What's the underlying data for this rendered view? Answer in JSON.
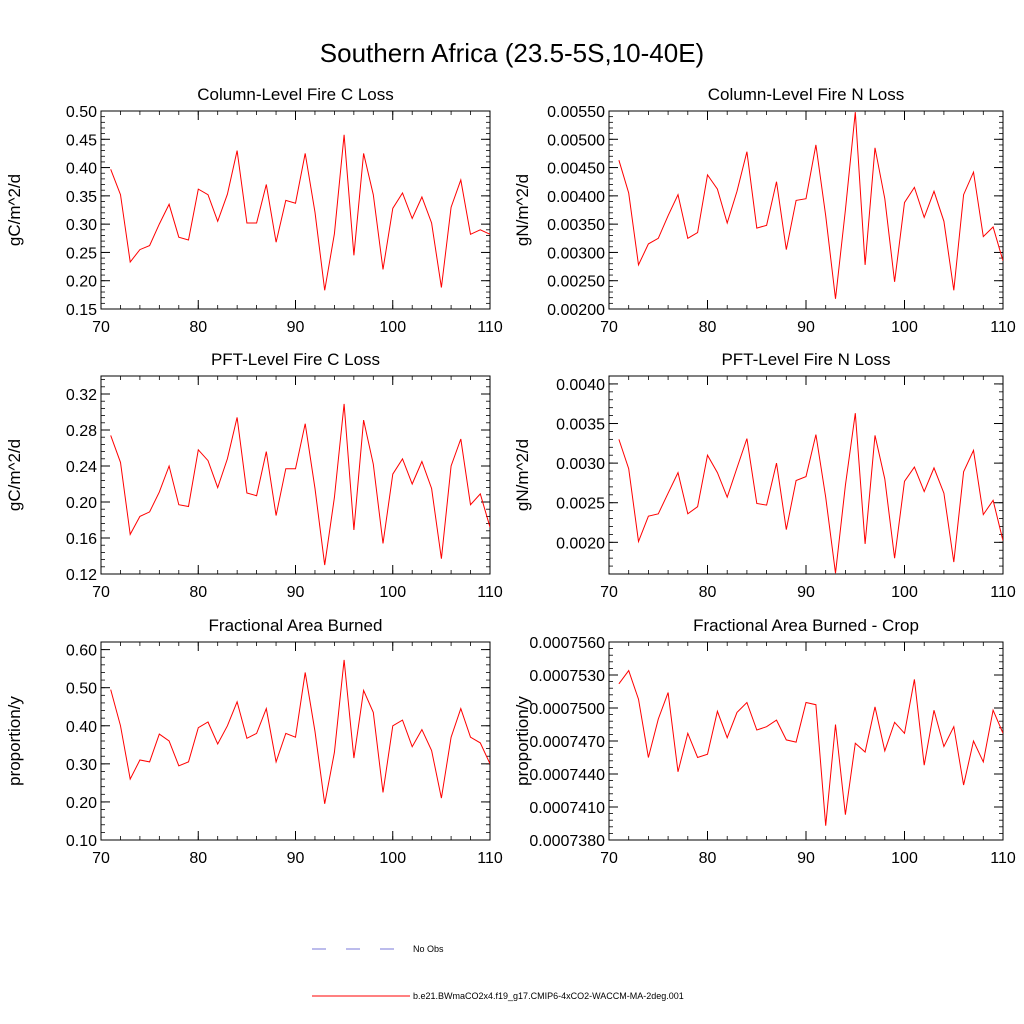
{
  "figure": {
    "title": "Southern Africa (23.5-5S,10-40E)"
  },
  "legend": {
    "entries": [
      {
        "label": "No Obs",
        "color": "#7a7ad8",
        "style": "dashed"
      },
      {
        "label": "b.e21.BWmaCO2x4.f19_g17.CMIP6-4xCO2-WACCM-MA-2deg.001",
        "color": "#ff0000",
        "style": "solid"
      }
    ]
  },
  "chart_data": [
    {
      "type": "line",
      "title": "Column-Level Fire C Loss",
      "xlabel": "",
      "ylabel": "gC/m^2/d",
      "xlim": [
        70,
        110
      ],
      "ylim": [
        0.15,
        0.5
      ],
      "xticks": [
        70,
        80,
        90,
        100,
        110
      ],
      "xtick_labels": [
        "70",
        "80",
        "90",
        "100",
        "110"
      ],
      "yticks": [
        0.15,
        0.2,
        0.25,
        0.3,
        0.35,
        0.4,
        0.45,
        0.5
      ],
      "ytick_labels": [
        "0.15",
        "0.20",
        "0.25",
        "0.30",
        "0.35",
        "0.40",
        "0.45",
        "0.50"
      ],
      "series": [
        {
          "name": "b.e21.BWmaCO2x4.f19_g17.CMIP6-4xCO2-WACCM-MA-2deg.001",
          "color": "#ff0000",
          "x": [
            71,
            72,
            73,
            74,
            75,
            76,
            77,
            78,
            79,
            80,
            81,
            82,
            83,
            84,
            85,
            86,
            87,
            88,
            89,
            90,
            91,
            92,
            93,
            94,
            95,
            96,
            97,
            98,
            99,
            100,
            101,
            102,
            103,
            104,
            105,
            106,
            107,
            108,
            109,
            110
          ],
          "y": [
            0.397,
            0.352,
            0.233,
            0.255,
            0.262,
            0.3,
            0.335,
            0.277,
            0.272,
            0.362,
            0.352,
            0.305,
            0.353,
            0.43,
            0.302,
            0.302,
            0.37,
            0.268,
            0.342,
            0.337,
            0.425,
            0.321,
            0.183,
            0.283,
            0.458,
            0.245,
            0.425,
            0.352,
            0.22,
            0.328,
            0.355,
            0.31,
            0.348,
            0.302,
            0.188,
            0.33,
            0.378,
            0.282,
            0.29,
            0.282
          ]
        }
      ]
    },
    {
      "type": "line",
      "title": "Column-Level Fire N Loss",
      "xlabel": "",
      "ylabel": "gN/m^2/d",
      "xlim": [
        70,
        110
      ],
      "ylim": [
        0.002,
        0.0055
      ],
      "xticks": [
        70,
        80,
        90,
        100,
        110
      ],
      "xtick_labels": [
        "70",
        "80",
        "90",
        "100",
        "110"
      ],
      "yticks": [
        0.002,
        0.0025,
        0.003,
        0.0035,
        0.004,
        0.0045,
        0.005,
        0.0055
      ],
      "ytick_labels": [
        "0.00200",
        "0.00250",
        "0.00300",
        "0.00350",
        "0.00400",
        "0.00450",
        "0.00500",
        "0.00550"
      ],
      "series": [
        {
          "name": "b.e21.BWmaCO2x4.f19_g17.CMIP6-4xCO2-WACCM-MA-2deg.001",
          "color": "#ff0000",
          "x": [
            71,
            72,
            73,
            74,
            75,
            76,
            77,
            78,
            79,
            80,
            81,
            82,
            83,
            84,
            85,
            86,
            87,
            88,
            89,
            90,
            91,
            92,
            93,
            94,
            95,
            96,
            97,
            98,
            99,
            100,
            101,
            102,
            103,
            104,
            105,
            106,
            107,
            108,
            109,
            110
          ],
          "y": [
            0.00463,
            0.00405,
            0.00278,
            0.00315,
            0.00325,
            0.00365,
            0.00402,
            0.00325,
            0.00335,
            0.00437,
            0.00412,
            0.00352,
            0.00408,
            0.00478,
            0.00343,
            0.00348,
            0.00425,
            0.00305,
            0.00392,
            0.00395,
            0.0049,
            0.00365,
            0.00218,
            0.00375,
            0.00548,
            0.00278,
            0.00485,
            0.00395,
            0.00248,
            0.00388,
            0.00415,
            0.00362,
            0.00408,
            0.00355,
            0.00233,
            0.00402,
            0.00442,
            0.00328,
            0.00345,
            0.00285
          ]
        }
      ]
    },
    {
      "type": "line",
      "title": "PFT-Level Fire C Loss",
      "xlabel": "",
      "ylabel": "gC/m^2/d",
      "xlim": [
        70,
        110
      ],
      "ylim": [
        0.12,
        0.34
      ],
      "xticks": [
        70,
        80,
        90,
        100,
        110
      ],
      "xtick_labels": [
        "70",
        "80",
        "90",
        "100",
        "110"
      ],
      "yticks": [
        0.12,
        0.16,
        0.2,
        0.24,
        0.28,
        0.32
      ],
      "ytick_labels": [
        "0.12",
        "0.16",
        "0.20",
        "0.24",
        "0.28",
        "0.32"
      ],
      "series": [
        {
          "name": "b.e21.BWmaCO2x4.f19_g17.CMIP6-4xCO2-WACCM-MA-2deg.001",
          "color": "#ff0000",
          "x": [
            71,
            72,
            73,
            74,
            75,
            76,
            77,
            78,
            79,
            80,
            81,
            82,
            83,
            84,
            85,
            86,
            87,
            88,
            89,
            90,
            91,
            92,
            93,
            94,
            95,
            96,
            97,
            98,
            99,
            100,
            101,
            102,
            103,
            104,
            105,
            106,
            107,
            108,
            109,
            110
          ],
          "y": [
            0.274,
            0.244,
            0.164,
            0.184,
            0.189,
            0.211,
            0.24,
            0.197,
            0.195,
            0.258,
            0.246,
            0.216,
            0.248,
            0.294,
            0.21,
            0.207,
            0.256,
            0.185,
            0.237,
            0.237,
            0.287,
            0.215,
            0.13,
            0.205,
            0.309,
            0.169,
            0.291,
            0.242,
            0.154,
            0.231,
            0.248,
            0.22,
            0.245,
            0.215,
            0.137,
            0.24,
            0.27,
            0.197,
            0.209,
            0.172
          ]
        }
      ]
    },
    {
      "type": "line",
      "title": "PFT-Level Fire N Loss",
      "xlabel": "",
      "ylabel": "gN/m^2/d",
      "xlim": [
        70,
        110
      ],
      "ylim": [
        0.0016,
        0.0041
      ],
      "xticks": [
        70,
        80,
        90,
        100,
        110
      ],
      "xtick_labels": [
        "70",
        "80",
        "90",
        "100",
        "110"
      ],
      "yticks": [
        0.002,
        0.0025,
        0.003,
        0.0035,
        0.004
      ],
      "ytick_labels": [
        "0.0020",
        "0.0025",
        "0.0030",
        "0.0035",
        "0.0040"
      ],
      "series": [
        {
          "name": "b.e21.BWmaCO2x4.f19_g17.CMIP6-4xCO2-WACCM-MA-2deg.001",
          "color": "#ff0000",
          "x": [
            71,
            72,
            73,
            74,
            75,
            76,
            77,
            78,
            79,
            80,
            81,
            82,
            83,
            84,
            85,
            86,
            87,
            88,
            89,
            90,
            91,
            92,
            93,
            94,
            95,
            96,
            97,
            98,
            99,
            100,
            101,
            102,
            103,
            104,
            105,
            106,
            107,
            108,
            109,
            110
          ],
          "y": [
            0.0033,
            0.00293,
            0.00201,
            0.00233,
            0.00236,
            0.00262,
            0.00288,
            0.00236,
            0.00245,
            0.0031,
            0.00288,
            0.00257,
            0.00294,
            0.00331,
            0.00249,
            0.00247,
            0.003,
            0.00216,
            0.00278,
            0.00283,
            0.00336,
            0.00257,
            0.00161,
            0.00272,
            0.00363,
            0.00198,
            0.00335,
            0.0028,
            0.0018,
            0.00277,
            0.00295,
            0.00264,
            0.00294,
            0.00262,
            0.00175,
            0.00289,
            0.00316,
            0.00235,
            0.00253,
            0.00202
          ]
        }
      ]
    },
    {
      "type": "line",
      "title": "Fractional Area Burned",
      "xlabel": "",
      "ylabel": "proportion/y",
      "xlim": [
        70,
        110
      ],
      "ylim": [
        0.1,
        0.62
      ],
      "xticks": [
        70,
        80,
        90,
        100,
        110
      ],
      "xtick_labels": [
        "70",
        "80",
        "90",
        "100",
        "110"
      ],
      "yticks": [
        0.1,
        0.2,
        0.3,
        0.4,
        0.5,
        0.6
      ],
      "ytick_labels": [
        "0.10",
        "0.20",
        "0.30",
        "0.40",
        "0.50",
        "0.60"
      ],
      "series": [
        {
          "name": "b.e21.BWmaCO2x4.f19_g17.CMIP6-4xCO2-WACCM-MA-2deg.001",
          "color": "#ff0000",
          "x": [
            71,
            72,
            73,
            74,
            75,
            76,
            77,
            78,
            79,
            80,
            81,
            82,
            83,
            84,
            85,
            86,
            87,
            88,
            89,
            90,
            91,
            92,
            93,
            94,
            95,
            96,
            97,
            98,
            99,
            100,
            101,
            102,
            103,
            104,
            105,
            106,
            107,
            108,
            109,
            110
          ],
          "y": [
            0.495,
            0.4,
            0.26,
            0.31,
            0.305,
            0.378,
            0.36,
            0.295,
            0.305,
            0.395,
            0.41,
            0.352,
            0.4,
            0.463,
            0.367,
            0.38,
            0.445,
            0.305,
            0.38,
            0.37,
            0.54,
            0.385,
            0.195,
            0.33,
            0.573,
            0.315,
            0.493,
            0.435,
            0.225,
            0.4,
            0.415,
            0.345,
            0.39,
            0.335,
            0.21,
            0.37,
            0.445,
            0.37,
            0.355,
            0.3
          ]
        }
      ]
    },
    {
      "type": "line",
      "title": "Fractional Area Burned - Crop",
      "xlabel": "",
      "ylabel": "proportion/y",
      "xlim": [
        70,
        110
      ],
      "ylim": [
        0.000738,
        0.000756
      ],
      "xticks": [
        70,
        80,
        90,
        100,
        110
      ],
      "xtick_labels": [
        "70",
        "80",
        "90",
        "100",
        "110"
      ],
      "yticks": [
        0.000738,
        0.000741,
        0.000744,
        0.000747,
        0.00075,
        0.000753,
        0.000756
      ],
      "ytick_labels": [
        "0.0007380",
        "0.0007410",
        "0.0007440",
        "0.0007470",
        "0.0007500",
        "0.0007530",
        "0.0007560"
      ],
      "series": [
        {
          "name": "b.e21.BWmaCO2x4.f19_g17.CMIP6-4xCO2-WACCM-MA-2deg.001",
          "color": "#ff0000",
          "x": [
            71,
            72,
            73,
            74,
            75,
            76,
            77,
            78,
            79,
            80,
            81,
            82,
            83,
            84,
            85,
            86,
            87,
            88,
            89,
            90,
            91,
            92,
            93,
            94,
            95,
            96,
            97,
            98,
            99,
            100,
            101,
            102,
            103,
            104,
            105,
            106,
            107,
            108,
            109,
            110
          ],
          "y": [
            0.0007522,
            0.0007534,
            0.0007508,
            0.0007455,
            0.000749,
            0.0007514,
            0.0007442,
            0.0007477,
            0.0007455,
            0.0007458,
            0.0007497,
            0.0007473,
            0.0007496,
            0.0007505,
            0.000748,
            0.0007483,
            0.0007489,
            0.0007471,
            0.0007469,
            0.0007505,
            0.0007503,
            0.0007393,
            0.0007485,
            0.0007403,
            0.0007468,
            0.000746,
            0.0007501,
            0.0007461,
            0.0007487,
            0.0007477,
            0.0007526,
            0.0007448,
            0.0007498,
            0.0007465,
            0.0007483,
            0.000743,
            0.000747,
            0.0007451,
            0.0007498,
            0.0007477
          ]
        }
      ]
    }
  ]
}
